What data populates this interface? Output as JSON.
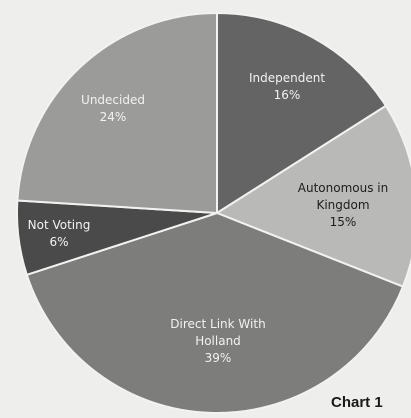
{
  "chart_data": {
    "type": "pie",
    "slices": [
      {
        "label": "Independent",
        "value": 16,
        "value_label": "16%",
        "color": "#646464",
        "text_color": "#f2f2f2"
      },
      {
        "label": "Autonomous in Kingdom",
        "value": 15,
        "value_label": "15%",
        "color": "#b9b9b7",
        "text_color": "#1e1e1e"
      },
      {
        "label": "Direct Link With Holland",
        "value": 39,
        "value_label": "39%",
        "color": "#7d7d7b",
        "text_color": "#f2f2f2"
      },
      {
        "label": "Not Voting",
        "value": 6,
        "value_label": "6%",
        "color": "#4a4a4a",
        "text_color": "#f2f2f2"
      },
      {
        "label": "Undecided",
        "value": 24,
        "value_label": "24%",
        "color": "#9b9b99",
        "text_color": "#f2f2f2"
      }
    ],
    "start_angle_deg": 0,
    "direction": "clockwise"
  },
  "caption": "Chart 1"
}
